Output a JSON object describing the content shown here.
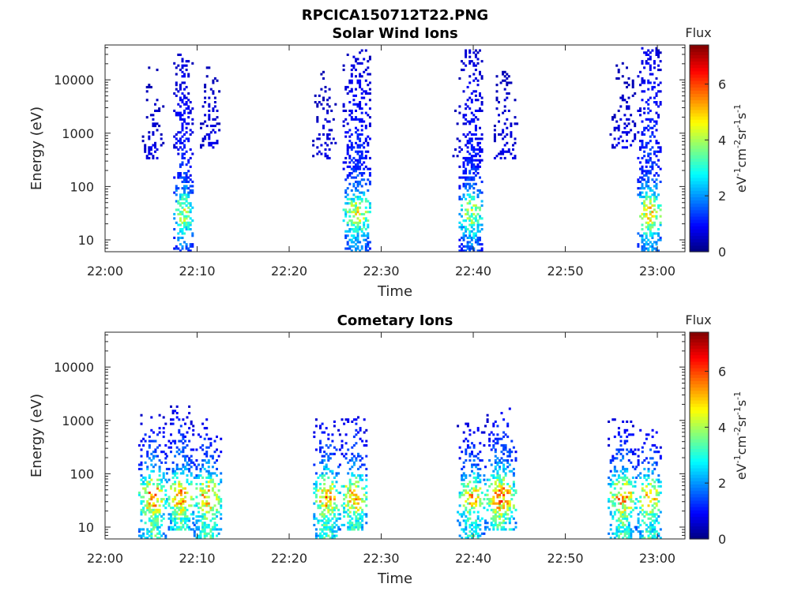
{
  "figure": {
    "title": "RPCICA150712T22.PNG"
  },
  "chart_data": [
    {
      "type": "heatmap",
      "title": "Solar Wind Ions",
      "xlabel": "Time",
      "ylabel": "Energy (eV)",
      "x_ticks": [
        "22:00",
        "22:10",
        "22:20",
        "22:30",
        "22:40",
        "22:50",
        "23:00"
      ],
      "x_tick_minutes": [
        0,
        10,
        20,
        30,
        40,
        50,
        60
      ],
      "xlim_minutes": [
        0,
        63
      ],
      "y_scale": "log",
      "ylim": [
        6,
        45000
      ],
      "y_ticks": [
        "10",
        "100",
        "1000",
        "10000"
      ],
      "y_tick_values": [
        10,
        100,
        1000,
        10000
      ],
      "colorbar": {
        "title": "Flux",
        "label": "eV-1cm-2sr-1s-1",
        "ticks": [
          "0",
          "2",
          "4",
          "6"
        ],
        "tick_values": [
          0,
          2,
          4,
          6
        ],
        "range": [
          0,
          7.4
        ],
        "colormap": "jet"
      },
      "bursts": [
        {
          "start": 4.0,
          "end": 6.2,
          "e_min": 300,
          "e_max": 18000,
          "peak_flux": 2.2,
          "density": 0.3
        },
        {
          "start": 7.4,
          "end": 9.4,
          "e_min": 6,
          "e_max": 30000,
          "peak_flux": 4.6,
          "density": 0.55
        },
        {
          "start": 10.3,
          "end": 12.5,
          "e_min": 500,
          "e_max": 20000,
          "peak_flux": 2.4,
          "density": 0.3
        },
        {
          "start": 22.5,
          "end": 25.0,
          "e_min": 300,
          "e_max": 15000,
          "peak_flux": 2.3,
          "density": 0.28
        },
        {
          "start": 25.8,
          "end": 28.8,
          "e_min": 6,
          "e_max": 35000,
          "peak_flux": 4.8,
          "density": 0.55
        },
        {
          "start": 37.5,
          "end": 38.4,
          "e_min": 300,
          "e_max": 12000,
          "peak_flux": 1.5,
          "density": 0.2
        },
        {
          "start": 38.4,
          "end": 41.0,
          "e_min": 6,
          "e_max": 35000,
          "peak_flux": 4.4,
          "density": 0.55
        },
        {
          "start": 42.0,
          "end": 44.8,
          "e_min": 300,
          "e_max": 18000,
          "peak_flux": 2.4,
          "density": 0.3
        },
        {
          "start": 54.8,
          "end": 57.6,
          "e_min": 500,
          "e_max": 20000,
          "peak_flux": 2.4,
          "density": 0.28
        },
        {
          "start": 57.8,
          "end": 60.4,
          "e_min": 6,
          "e_max": 40000,
          "peak_flux": 5.2,
          "density": 0.55
        }
      ]
    },
    {
      "type": "heatmap",
      "title": "Cometary Ions",
      "xlabel": "Time",
      "ylabel": "Energy (eV)",
      "x_ticks": [
        "22:00",
        "22:10",
        "22:20",
        "22:30",
        "22:40",
        "22:50",
        "23:00"
      ],
      "x_tick_minutes": [
        0,
        10,
        20,
        30,
        40,
        50,
        60
      ],
      "xlim_minutes": [
        0,
        63
      ],
      "y_scale": "log",
      "ylim": [
        6,
        45000
      ],
      "y_ticks": [
        "10",
        "100",
        "1000",
        "10000"
      ],
      "y_tick_values": [
        10,
        100,
        1000,
        10000
      ],
      "colorbar": {
        "title": "Flux",
        "label": "eV-1cm-2sr-1s-1",
        "ticks": [
          "0",
          "2",
          "4",
          "6"
        ],
        "tick_values": [
          0,
          2,
          4,
          6
        ],
        "range": [
          0,
          7.4
        ],
        "colormap": "jet"
      },
      "bursts": [
        {
          "start": 3.6,
          "end": 6.6,
          "e_min": 6,
          "e_max": 1300,
          "peak_flux": 7.2,
          "density": 0.6
        },
        {
          "start": 6.6,
          "end": 9.6,
          "e_min": 8,
          "e_max": 2000,
          "peak_flux": 6.5,
          "density": 0.58
        },
        {
          "start": 9.6,
          "end": 12.5,
          "e_min": 6,
          "e_max": 1000,
          "peak_flux": 7.0,
          "density": 0.58
        },
        {
          "start": 22.6,
          "end": 25.4,
          "e_min": 6,
          "e_max": 1200,
          "peak_flux": 7.2,
          "density": 0.6
        },
        {
          "start": 25.4,
          "end": 28.4,
          "e_min": 8,
          "e_max": 1400,
          "peak_flux": 6.6,
          "density": 0.58
        },
        {
          "start": 38.2,
          "end": 41.2,
          "e_min": 6,
          "e_max": 900,
          "peak_flux": 6.6,
          "density": 0.58
        },
        {
          "start": 41.2,
          "end": 44.6,
          "e_min": 8,
          "e_max": 1800,
          "peak_flux": 6.9,
          "density": 0.58
        },
        {
          "start": 54.6,
          "end": 57.6,
          "e_min": 6,
          "e_max": 1100,
          "peak_flux": 7.0,
          "density": 0.6
        },
        {
          "start": 57.6,
          "end": 60.4,
          "e_min": 6,
          "e_max": 900,
          "peak_flux": 6.8,
          "density": 0.58
        }
      ]
    }
  ]
}
